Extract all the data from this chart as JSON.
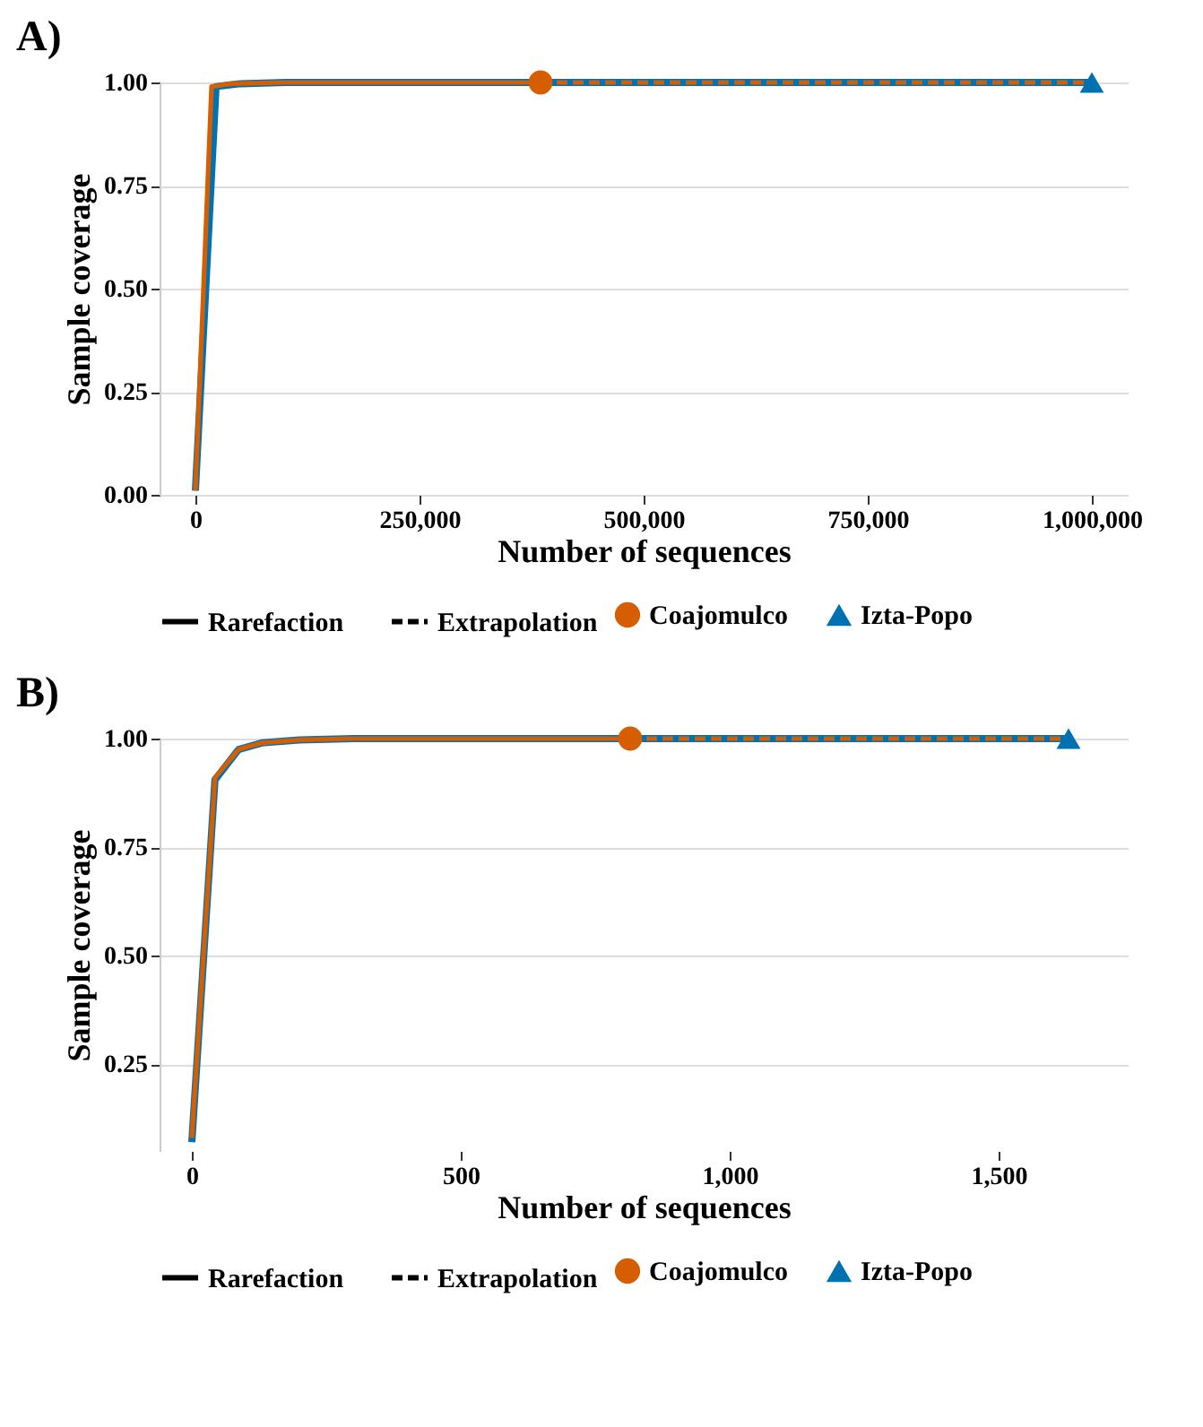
{
  "chart_data": [
    {
      "type": "line",
      "title": "A)",
      "xlabel": "Number of sequences",
      "ylabel": "Sample coverage",
      "xlim": [
        -40000,
        1040000
      ],
      "ylim": [
        0,
        1
      ],
      "xticks": [
        {
          "value": 0,
          "label": "0"
        },
        {
          "value": 250000,
          "label": "250,000"
        },
        {
          "value": 500000,
          "label": "500,000"
        },
        {
          "value": 750000,
          "label": "750,000"
        },
        {
          "value": 1000000,
          "label": "1,000,000"
        }
      ],
      "yticks": [
        {
          "value": 0,
          "label": "0.00"
        },
        {
          "value": 0.25,
          "label": "0.25"
        },
        {
          "value": 0.5,
          "label": "0.50"
        },
        {
          "value": 0.75,
          "label": "0.75"
        },
        {
          "value": 1,
          "label": "1.00"
        }
      ],
      "grid": "y",
      "legend": "bottom",
      "annotations": [
        "Rarefaction",
        "Extrapolation"
      ],
      "series": [
        {
          "name": "Izta-Popo",
          "type": "line",
          "line_style": "solid",
          "color": "#0072b2",
          "x": [
            0,
            23000,
            50000,
            100000,
            1000000
          ],
          "values": [
            0.01,
            0.99,
            0.997,
            1.0,
            1.0
          ]
        },
        {
          "name": "Coajomulco",
          "type": "line",
          "line_style": "solid",
          "color": "#d55e00",
          "x": [
            0,
            18000,
            40000,
            100000,
            385000
          ],
          "values": [
            0.01,
            0.99,
            0.997,
            1.0,
            1.0
          ]
        },
        {
          "type": "line",
          "line_style": "dashed",
          "color": "#d55e00",
          "x": [
            385000,
            1000000
          ],
          "values": [
            1.0,
            1.0
          ]
        },
        {
          "name": "Coajomulco",
          "type": "scatter",
          "marker": "circle",
          "color": "#d55e00",
          "x": [
            385000
          ],
          "values": [
            1.0
          ]
        },
        {
          "name": "Izta-Popo",
          "type": "scatter",
          "marker": "triangle",
          "color": "#0072b2",
          "x": [
            1000000
          ],
          "values": [
            1.0
          ]
        }
      ]
    },
    {
      "type": "line",
      "title": "B)",
      "xlabel": "Number of sequences",
      "ylabel": "Sample coverage",
      "xlim": [
        -60,
        1740
      ],
      "ylim": [
        0.05,
        1
      ],
      "xticks": [
        {
          "value": 0,
          "label": "0"
        },
        {
          "value": 500,
          "label": "500"
        },
        {
          "value": 1000,
          "label": "1,000"
        },
        {
          "value": 1500,
          "label": "1,500"
        }
      ],
      "yticks": [
        {
          "value": 0.25,
          "label": "0.25"
        },
        {
          "value": 0.5,
          "label": "0.50"
        },
        {
          "value": 0.75,
          "label": "0.75"
        },
        {
          "value": 1,
          "label": "1.00"
        }
      ],
      "grid": "y",
      "legend": "bottom",
      "annotations": [
        "Rarefaction",
        "Extrapolation"
      ],
      "series": [
        {
          "name": "Izta-Popo",
          "type": "line",
          "line_style": "solid",
          "color": "#0072b2",
          "x": [
            0,
            43,
            87,
            130,
            200,
            300,
            1630
          ],
          "values": [
            0.07,
            0.905,
            0.975,
            0.99,
            0.997,
            1.0,
            1.0
          ]
        },
        {
          "name": "Coajomulco",
          "type": "line",
          "line_style": "solid",
          "color": "#d55e00",
          "x": [
            0,
            43,
            87,
            130,
            200,
            300,
            815
          ],
          "values": [
            0.08,
            0.91,
            0.975,
            0.99,
            0.997,
            1.0,
            1.0
          ]
        },
        {
          "type": "line",
          "line_style": "dashed",
          "color": "#d55e00",
          "x": [
            815,
            1630
          ],
          "values": [
            1.0,
            1.0
          ]
        },
        {
          "name": "Coajomulco",
          "type": "scatter",
          "marker": "circle",
          "color": "#d55e00",
          "x": [
            815
          ],
          "values": [
            1.0
          ]
        },
        {
          "name": "Izta-Popo",
          "type": "scatter",
          "marker": "triangle",
          "color": "#0072b2",
          "x": [
            1630
          ],
          "values": [
            1.0
          ]
        }
      ]
    }
  ]
}
